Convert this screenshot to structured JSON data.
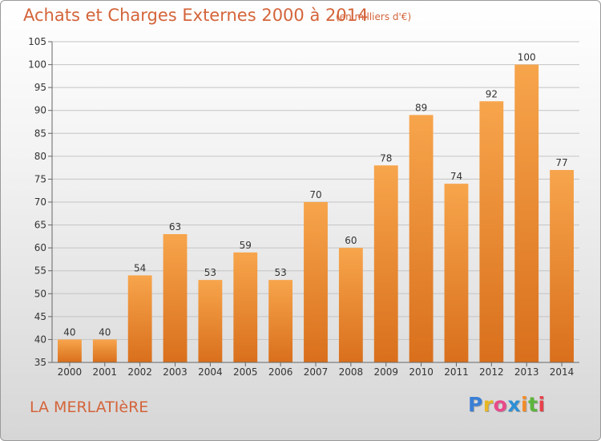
{
  "title": "Achats et Charges Externes 2000 à 2014",
  "subtitle": "(en milliers d'€)",
  "commune": "LA MERLATIèRE",
  "brand": {
    "letters": [
      "P",
      "r",
      "o",
      "x",
      "i",
      "t",
      "i"
    ],
    "colors": [
      "#3b7fd6",
      "#e7b623",
      "#e84a8a",
      "#2d8fd6",
      "#f28c28",
      "#5bb53b",
      "#e8424a"
    ]
  },
  "colors": {
    "title": "#d4643a",
    "bar_light": "#f7a54c",
    "bar_dark": "#d96f1c"
  },
  "chart_data": {
    "type": "bar",
    "categories": [
      "2000",
      "2001",
      "2002",
      "2003",
      "2004",
      "2005",
      "2006",
      "2007",
      "2008",
      "2009",
      "2010",
      "2011",
      "2012",
      "2013",
      "2014"
    ],
    "values": [
      40,
      40,
      54,
      63,
      53,
      59,
      53,
      70,
      60,
      78,
      89,
      74,
      92,
      100,
      77
    ],
    "ylim": [
      35,
      105
    ],
    "yticks": [
      35,
      40,
      45,
      50,
      55,
      60,
      65,
      70,
      75,
      80,
      85,
      90,
      95,
      100,
      105
    ],
    "grid": true,
    "data_labels": true
  }
}
